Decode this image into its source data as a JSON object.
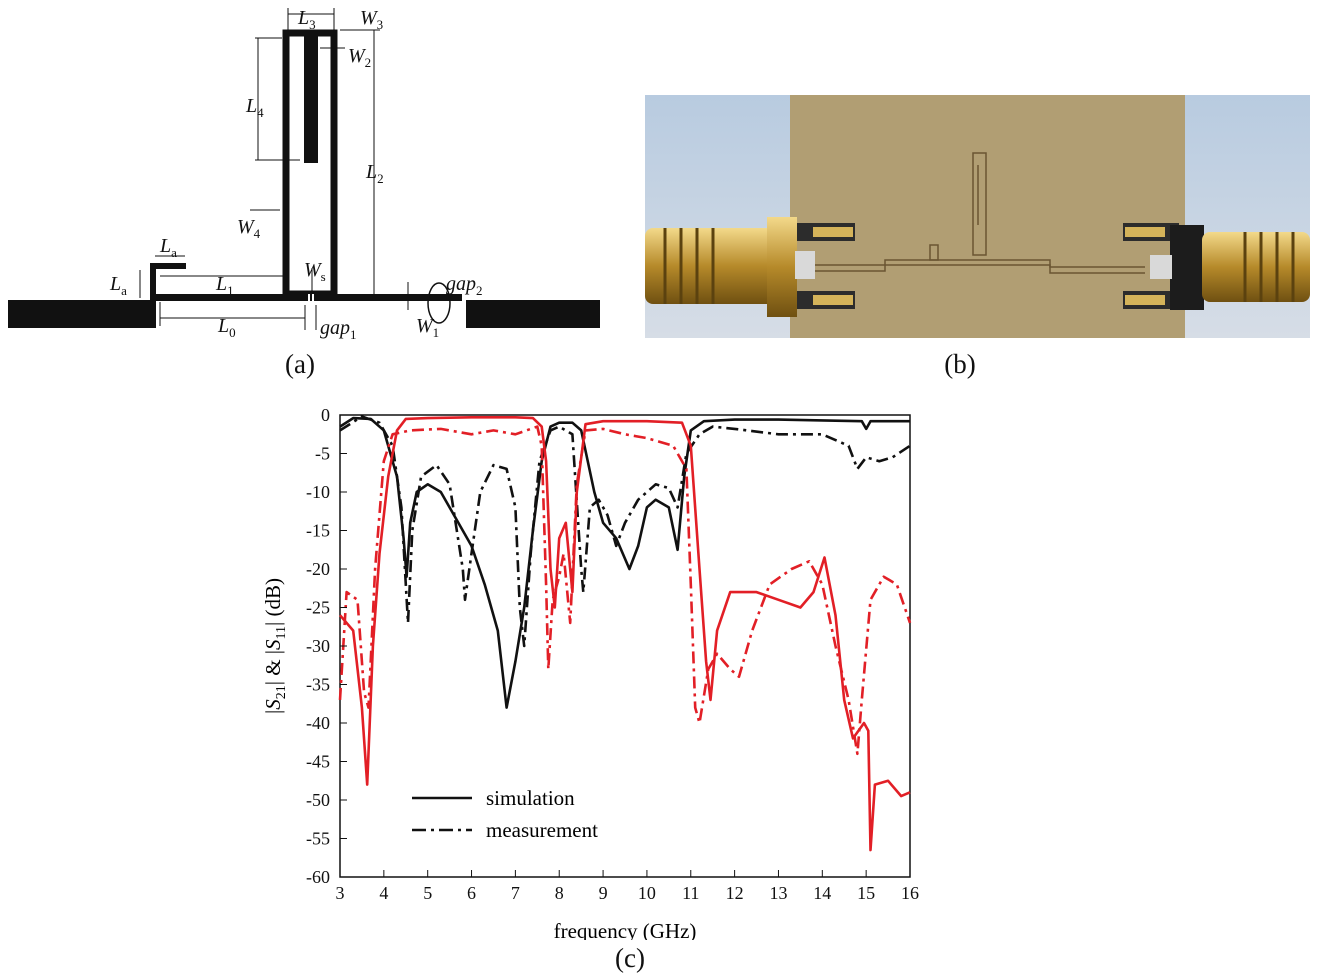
{
  "figure": {
    "caption_a": "(a)",
    "caption_b": "(b)",
    "caption_c": "(c)"
  },
  "diagram": {
    "labels": {
      "L3": "L3",
      "W3": "W3",
      "W2": "W2",
      "L4": "L4",
      "L2": "L2",
      "W4": "W4",
      "La": "La",
      "Lb": "La",
      "L1": "L1",
      "Ws": "Ws",
      "gap2": "gap2",
      "L0": "L0",
      "W1": "W1",
      "gap1": "gap1"
    }
  },
  "chart_data": {
    "type": "line",
    "xlabel": "frequency (GHz)",
    "ylabel": "|S21| & |S11| (dB)",
    "xlim": [
      3,
      16
    ],
    "ylim": [
      -60,
      0
    ],
    "xticks": [
      3,
      4,
      5,
      6,
      7,
      8,
      9,
      10,
      11,
      12,
      13,
      14,
      15,
      16
    ],
    "yticks": [
      0,
      -5,
      -10,
      -15,
      -20,
      -25,
      -30,
      -35,
      -40,
      -45,
      -50,
      -55,
      -60
    ],
    "legend": [
      {
        "label": "simulation",
        "style": "solid"
      },
      {
        "label": "measurement",
        "style": "dash-dot"
      }
    ],
    "series": [
      {
        "color": "#111111",
        "style": "solid",
        "points": [
          [
            3,
            -1.5
          ],
          [
            3.3,
            -0.4
          ],
          [
            3.7,
            -0.5
          ],
          [
            4.0,
            -2
          ],
          [
            4.3,
            -8
          ],
          [
            4.45,
            -16
          ],
          [
            4.52,
            -21
          ],
          [
            4.6,
            -14
          ],
          [
            4.75,
            -10
          ],
          [
            5.0,
            -9
          ],
          [
            5.3,
            -10
          ],
          [
            5.6,
            -13
          ],
          [
            6.0,
            -17
          ],
          [
            6.3,
            -22
          ],
          [
            6.6,
            -28
          ],
          [
            6.8,
            -38
          ],
          [
            7.0,
            -32
          ],
          [
            7.2,
            -25
          ],
          [
            7.4,
            -15
          ],
          [
            7.6,
            -6
          ],
          [
            7.8,
            -1.5
          ],
          [
            8.0,
            -1
          ],
          [
            8.3,
            -1
          ],
          [
            8.5,
            -2
          ],
          [
            8.8,
            -10
          ],
          [
            9.0,
            -14
          ],
          [
            9.3,
            -16
          ],
          [
            9.6,
            -20
          ],
          [
            9.8,
            -17
          ],
          [
            10.0,
            -12
          ],
          [
            10.2,
            -11
          ],
          [
            10.5,
            -12
          ],
          [
            10.7,
            -17.5
          ],
          [
            10.85,
            -8
          ],
          [
            11.0,
            -2
          ],
          [
            11.3,
            -0.8
          ],
          [
            12,
            -0.6
          ],
          [
            13,
            -0.6
          ],
          [
            14,
            -0.7
          ],
          [
            14.9,
            -0.8
          ],
          [
            15.0,
            -1.8
          ],
          [
            15.1,
            -0.8
          ],
          [
            16,
            -0.8
          ]
        ]
      },
      {
        "color": "#111111",
        "style": "dash-dot",
        "points": [
          [
            3,
            -2
          ],
          [
            3.5,
            -0.2
          ],
          [
            3.9,
            -1
          ],
          [
            4.2,
            -4
          ],
          [
            4.4,
            -12
          ],
          [
            4.55,
            -27
          ],
          [
            4.65,
            -15
          ],
          [
            4.85,
            -8
          ],
          [
            5.2,
            -6.5
          ],
          [
            5.5,
            -9
          ],
          [
            5.8,
            -20
          ],
          [
            5.85,
            -24
          ],
          [
            6.0,
            -18
          ],
          [
            6.2,
            -10
          ],
          [
            6.5,
            -6.5
          ],
          [
            6.8,
            -7
          ],
          [
            7.0,
            -12
          ],
          [
            7.1,
            -25
          ],
          [
            7.2,
            -30
          ],
          [
            7.35,
            -18
          ],
          [
            7.55,
            -6
          ],
          [
            7.8,
            -2
          ],
          [
            8.0,
            -1.5
          ],
          [
            8.3,
            -2.5
          ],
          [
            8.5,
            -20
          ],
          [
            8.55,
            -23
          ],
          [
            8.7,
            -12
          ],
          [
            8.9,
            -11
          ],
          [
            9.1,
            -13
          ],
          [
            9.3,
            -17
          ],
          [
            9.5,
            -14
          ],
          [
            9.8,
            -11
          ],
          [
            10.2,
            -9
          ],
          [
            10.5,
            -9.5
          ],
          [
            10.7,
            -12
          ],
          [
            10.9,
            -5
          ],
          [
            11.2,
            -2.5
          ],
          [
            11.5,
            -1.5
          ],
          [
            12,
            -1.8
          ],
          [
            13,
            -2.5
          ],
          [
            14,
            -2.5
          ],
          [
            14.6,
            -4
          ],
          [
            14.8,
            -7
          ],
          [
            15.0,
            -5.5
          ],
          [
            15.3,
            -6
          ],
          [
            15.6,
            -5.5
          ],
          [
            16,
            -4
          ]
        ]
      },
      {
        "color": "#e21f26",
        "style": "solid",
        "points": [
          [
            3,
            -26
          ],
          [
            3.3,
            -28
          ],
          [
            3.5,
            -38
          ],
          [
            3.62,
            -48
          ],
          [
            3.75,
            -30
          ],
          [
            3.9,
            -18
          ],
          [
            4.1,
            -8
          ],
          [
            4.3,
            -2
          ],
          [
            4.5,
            -0.5
          ],
          [
            5,
            -0.4
          ],
          [
            6,
            -0.3
          ],
          [
            7,
            -0.3
          ],
          [
            7.4,
            -0.4
          ],
          [
            7.6,
            -1.5
          ],
          [
            7.7,
            -6
          ],
          [
            7.8,
            -20
          ],
          [
            7.9,
            -25
          ],
          [
            8.0,
            -16
          ],
          [
            8.15,
            -14
          ],
          [
            8.3,
            -23
          ],
          [
            8.4,
            -10
          ],
          [
            8.6,
            -1.2
          ],
          [
            9,
            -0.8
          ],
          [
            10,
            -0.8
          ],
          [
            10.8,
            -1
          ],
          [
            11.0,
            -4
          ],
          [
            11.2,
            -20
          ],
          [
            11.35,
            -32
          ],
          [
            11.45,
            -37
          ],
          [
            11.6,
            -28
          ],
          [
            11.9,
            -23
          ],
          [
            12.5,
            -23
          ],
          [
            13.0,
            -24
          ],
          [
            13.5,
            -25
          ],
          [
            13.8,
            -23
          ],
          [
            14.05,
            -18.5
          ],
          [
            14.3,
            -26
          ],
          [
            14.5,
            -37
          ],
          [
            14.7,
            -42
          ],
          [
            14.95,
            -40
          ],
          [
            15.05,
            -41
          ],
          [
            15.1,
            -56.5
          ],
          [
            15.2,
            -48
          ],
          [
            15.5,
            -47.5
          ],
          [
            15.8,
            -49.5
          ],
          [
            16,
            -49
          ]
        ]
      },
      {
        "color": "#e21f26",
        "style": "dash-dot",
        "points": [
          [
            3,
            -37
          ],
          [
            3.15,
            -23
          ],
          [
            3.4,
            -24
          ],
          [
            3.55,
            -36
          ],
          [
            3.65,
            -38
          ],
          [
            3.8,
            -20
          ],
          [
            4.0,
            -6
          ],
          [
            4.2,
            -2.5
          ],
          [
            4.6,
            -2
          ],
          [
            5.3,
            -1.8
          ],
          [
            6,
            -2.5
          ],
          [
            6.5,
            -2
          ],
          [
            7,
            -2.5
          ],
          [
            7.5,
            -1.5
          ],
          [
            7.6,
            -4
          ],
          [
            7.7,
            -22
          ],
          [
            7.75,
            -33
          ],
          [
            7.85,
            -24
          ],
          [
            8.0,
            -21
          ],
          [
            8.1,
            -18
          ],
          [
            8.25,
            -27
          ],
          [
            8.4,
            -9
          ],
          [
            8.6,
            -2
          ],
          [
            9,
            -1.8
          ],
          [
            9.5,
            -2.5
          ],
          [
            10,
            -3
          ],
          [
            10.6,
            -4
          ],
          [
            10.9,
            -7
          ],
          [
            11.0,
            -22
          ],
          [
            11.1,
            -38
          ],
          [
            11.2,
            -40
          ],
          [
            11.4,
            -33
          ],
          [
            11.6,
            -31
          ],
          [
            11.9,
            -33
          ],
          [
            12.1,
            -34
          ],
          [
            12.4,
            -28
          ],
          [
            12.8,
            -22
          ],
          [
            13.3,
            -20
          ],
          [
            13.7,
            -19
          ],
          [
            14.0,
            -22
          ],
          [
            14.3,
            -30
          ],
          [
            14.6,
            -37
          ],
          [
            14.8,
            -44
          ],
          [
            14.9,
            -37
          ],
          [
            15.1,
            -24
          ],
          [
            15.4,
            -21
          ],
          [
            15.7,
            -22
          ],
          [
            16,
            -27
          ]
        ]
      }
    ]
  }
}
